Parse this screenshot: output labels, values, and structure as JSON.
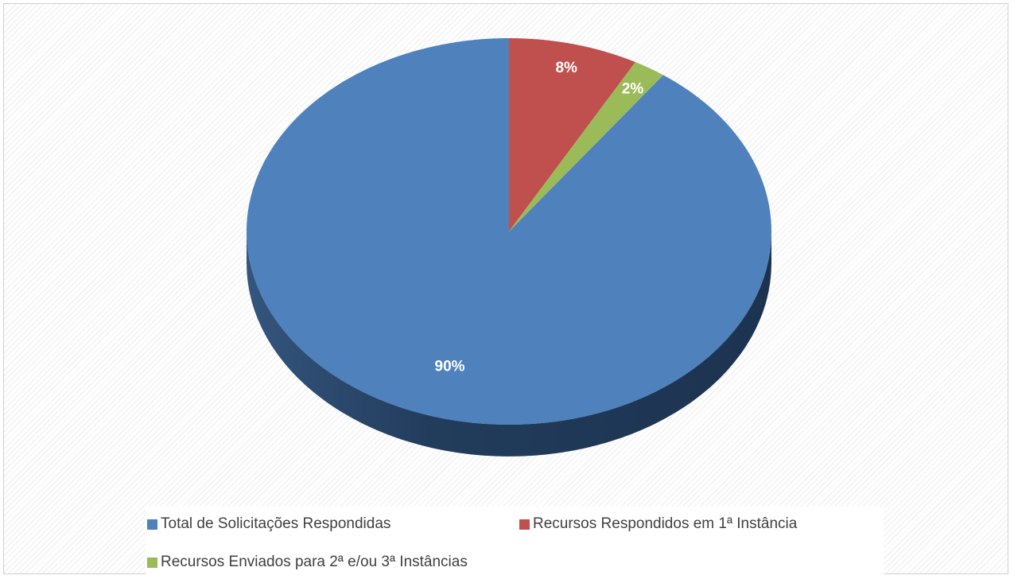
{
  "chart_data": {
    "type": "pie",
    "style": "3d",
    "categories": [
      "Total de Solicitações Respondidas",
      "Recursos Respondidos em 1ª Instância",
      "Recursos Enviados para 2ª e/ou 3ª Instâncias"
    ],
    "values": [
      90,
      8,
      2
    ],
    "labels": [
      "90%",
      "8%",
      "2%"
    ],
    "colors": [
      "#4f81bd",
      "#c0504d",
      "#9bbb59"
    ],
    "legend_position": "bottom"
  }
}
